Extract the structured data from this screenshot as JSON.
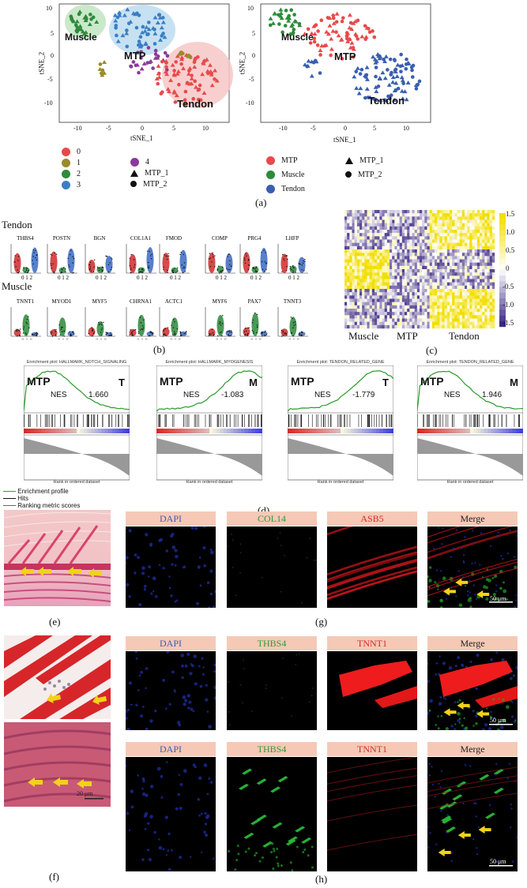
{
  "panel_a": {
    "left": {
      "xlabel": "tSNE_1",
      "ylabel": "tSNE_2",
      "xticks": [
        "-10",
        "-5",
        "0",
        "5",
        "10"
      ],
      "yticks": [
        "10",
        "5",
        "0",
        "-5",
        "-10"
      ],
      "regions": [
        "Muscle",
        "MTP",
        "Tendon"
      ]
    },
    "right": {
      "xlabel": "tSNE_1",
      "ylabel": "tSNE_2",
      "xticks": [
        "-10",
        "-5",
        "0",
        "5",
        "10"
      ],
      "yticks": [
        "10",
        "5",
        "0",
        "-5",
        "-10"
      ],
      "regions": [
        "Muscle",
        "MTP",
        "Tendon"
      ]
    },
    "legend_clusters": [
      "0",
      "1",
      "2",
      "3",
      "4"
    ],
    "legend_samples": [
      "MTP_1",
      "MTP_2"
    ],
    "legend_types": [
      "MTP",
      "Muscle",
      "Tendon"
    ],
    "colors": {
      "c0": "#e84a4a",
      "c1": "#9a8a2a",
      "c2": "#2e8b3a",
      "c3": "#3a7fc4",
      "c4": "#8a3a9a",
      "mtp": "#e84a4a",
      "muscle": "#2e8b3a",
      "tendon": "#3a5fb0"
    },
    "label": "(a)"
  },
  "panel_b": {
    "title_tendon": "Tendon",
    "tendon_genes": [
      "THBS4",
      "POSTN",
      "BGN",
      "COL1A1",
      "FMOD",
      "COMP",
      "PRG4",
      "LHFP"
    ],
    "title_muscle": "Muscle",
    "muscle_genes": [
      "TNNT1",
      "MYOD1",
      "MYF5",
      "CHRNA1",
      "ACTC1",
      "MYF6",
      "PAX7",
      "TNNT3"
    ],
    "xticks": "0 1 2",
    "label": "(b)"
  },
  "panel_c": {
    "scale": [
      "1.5",
      "1.0",
      "0.5",
      "0",
      "-0.5",
      "-1.0",
      "-1.5"
    ],
    "groups": [
      "Muscle",
      "MTP",
      "Tendon"
    ],
    "label": "(c)"
  },
  "panel_d": {
    "plots": [
      {
        "title": "Enrichment plot: HALLMARK_NOTCH_SIGNALING",
        "left": "MTP",
        "right": "T",
        "nes_label": "NES",
        "nes": "1.660"
      },
      {
        "title": "Enrichment plot: HALLMARK_MYOGENESIS",
        "left": "MTP",
        "right": "M",
        "nes_label": "NES",
        "nes": "-1.083"
      },
      {
        "title": "Enrichment plot: TENDON_RELATED_GENE",
        "left": "MTP",
        "right": "T",
        "nes_label": "NES",
        "nes": "-1.779"
      },
      {
        "title": "Enrichment plot: TENDON_RELATED_GENE",
        "left": "MTP",
        "right": "M",
        "nes_label": "NES",
        "nes": "1.946"
      }
    ],
    "xlabel": "Rank in ordered dataset",
    "legend": [
      "Enrichment profile",
      "Hits",
      "Ranking metric scores"
    ],
    "label": "(d)"
  },
  "panel_g": {
    "headers": [
      "DAPI",
      "COL14",
      "ASB5",
      "Merge"
    ],
    "scale": "50 μm",
    "label": "(g)"
  },
  "panel_e": {
    "label": "(e)"
  },
  "panel_h": {
    "row1": [
      "DAPI",
      "THBS4",
      "TNNT1",
      "Merge"
    ],
    "row2": [
      "DAPI",
      "THBS4",
      "TNNT1",
      "Merge"
    ],
    "scale": "50 μm",
    "label": "(h)"
  },
  "panel_f": {
    "scale": "20 μm",
    "label": "(f)"
  }
}
